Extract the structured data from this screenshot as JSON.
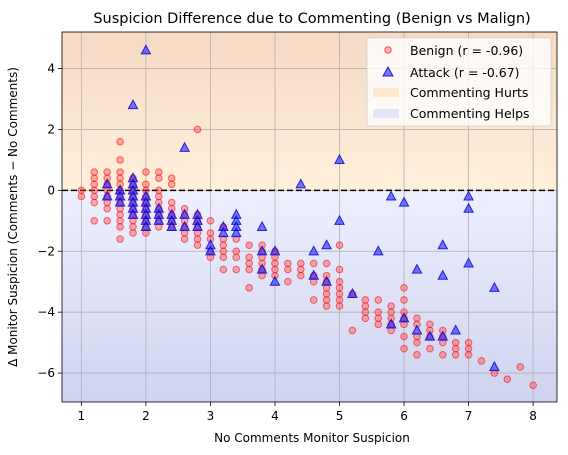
{
  "chart_data": {
    "type": "scatter",
    "title": "Suspicion Difference due to Commenting (Benign vs Malign)",
    "xlabel": "No Comments Monitor Suspicion",
    "ylabel": "Δ Monitor Suspicion (Comments − No Comments)",
    "xlim": [
      0.7,
      8.37
    ],
    "ylim": [
      -6.95,
      5.2
    ],
    "xticks": [
      "1",
      "2",
      "3",
      "4",
      "5",
      "6",
      "7",
      "8"
    ],
    "yticks": [
      "−6",
      "−4",
      "−2",
      "0",
      "2",
      "4"
    ],
    "grid": true,
    "reference_line": {
      "y": 0,
      "style": "dashed",
      "color": "#000000"
    },
    "regions": [
      {
        "name": "Commenting Hurts",
        "y_from": 0,
        "y_to": 5.2,
        "color": "#ffe0b8"
      },
      {
        "name": "Commenting Helps",
        "y_from": -6.95,
        "y_to": 0,
        "color": "#d8dcf8"
      }
    ],
    "legend_position": "top-right",
    "series": [
      {
        "name": "Benign (r = -0.96)",
        "marker": "circle",
        "color": "#ff4040",
        "points": [
          [
            1.0,
            0.0
          ],
          [
            1.0,
            -0.2
          ],
          [
            1.2,
            0.6
          ],
          [
            1.2,
            0.4
          ],
          [
            1.2,
            0.2
          ],
          [
            1.2,
            0.0
          ],
          [
            1.2,
            -0.2
          ],
          [
            1.2,
            -0.4
          ],
          [
            1.2,
            -1.0
          ],
          [
            1.4,
            0.6
          ],
          [
            1.4,
            0.4
          ],
          [
            1.4,
            0.2
          ],
          [
            1.4,
            0.0
          ],
          [
            1.4,
            -0.2
          ],
          [
            1.4,
            -0.4
          ],
          [
            1.4,
            -0.6
          ],
          [
            1.4,
            -1.0
          ],
          [
            1.6,
            1.6
          ],
          [
            1.6,
            1.0
          ],
          [
            1.6,
            0.6
          ],
          [
            1.6,
            0.4
          ],
          [
            1.6,
            0.2
          ],
          [
            1.6,
            0.0
          ],
          [
            1.6,
            -0.2
          ],
          [
            1.6,
            -0.4
          ],
          [
            1.6,
            -0.6
          ],
          [
            1.6,
            -0.8
          ],
          [
            1.6,
            -1.0
          ],
          [
            1.6,
            -1.2
          ],
          [
            1.6,
            -1.6
          ],
          [
            1.8,
            0.4
          ],
          [
            1.8,
            0.2
          ],
          [
            1.8,
            0.0
          ],
          [
            1.8,
            -0.2
          ],
          [
            1.8,
            -0.4
          ],
          [
            1.8,
            -0.6
          ],
          [
            1.8,
            -0.8
          ],
          [
            1.8,
            -1.0
          ],
          [
            1.8,
            -1.2
          ],
          [
            1.8,
            -1.4
          ],
          [
            2.0,
            0.6
          ],
          [
            2.0,
            0.2
          ],
          [
            2.0,
            0.0
          ],
          [
            2.0,
            -0.2
          ],
          [
            2.0,
            -0.4
          ],
          [
            2.0,
            -0.6
          ],
          [
            2.0,
            -0.8
          ],
          [
            2.0,
            -1.0
          ],
          [
            2.0,
            -1.2
          ],
          [
            2.0,
            -1.4
          ],
          [
            2.2,
            0.6
          ],
          [
            2.2,
            0.4
          ],
          [
            2.2,
            0.0
          ],
          [
            2.2,
            -0.2
          ],
          [
            2.2,
            -0.4
          ],
          [
            2.2,
            -0.6
          ],
          [
            2.2,
            -0.8
          ],
          [
            2.2,
            -1.0
          ],
          [
            2.2,
            -1.2
          ],
          [
            2.4,
            0.4
          ],
          [
            2.4,
            0.2
          ],
          [
            2.4,
            -0.4
          ],
          [
            2.4,
            -0.6
          ],
          [
            2.4,
            -0.8
          ],
          [
            2.4,
            -1.0
          ],
          [
            2.4,
            -1.2
          ],
          [
            2.6,
            -0.6
          ],
          [
            2.6,
            -0.8
          ],
          [
            2.6,
            -1.0
          ],
          [
            2.6,
            -1.2
          ],
          [
            2.6,
            -1.4
          ],
          [
            2.6,
            -1.6
          ],
          [
            2.8,
            2.0
          ],
          [
            2.8,
            -0.8
          ],
          [
            2.8,
            -1.0
          ],
          [
            2.8,
            -1.2
          ],
          [
            2.8,
            -1.4
          ],
          [
            2.8,
            -1.6
          ],
          [
            2.8,
            -1.8
          ],
          [
            3.0,
            -1.0
          ],
          [
            3.0,
            -1.4
          ],
          [
            3.0,
            -1.6
          ],
          [
            3.0,
            -2.0
          ],
          [
            3.0,
            -2.2
          ],
          [
            3.2,
            -1.2
          ],
          [
            3.2,
            -1.6
          ],
          [
            3.2,
            -1.8
          ],
          [
            3.2,
            -2.0
          ],
          [
            3.2,
            -2.2
          ],
          [
            3.2,
            -2.6
          ],
          [
            3.4,
            -1.6
          ],
          [
            3.4,
            -2.0
          ],
          [
            3.4,
            -2.2
          ],
          [
            3.4,
            -2.6
          ],
          [
            3.6,
            -1.8
          ],
          [
            3.6,
            -2.2
          ],
          [
            3.6,
            -2.4
          ],
          [
            3.6,
            -2.6
          ],
          [
            3.6,
            -3.2
          ],
          [
            3.8,
            -1.8
          ],
          [
            3.8,
            -2.0
          ],
          [
            3.8,
            -2.2
          ],
          [
            3.8,
            -2.4
          ],
          [
            3.8,
            -2.6
          ],
          [
            3.8,
            -2.8
          ],
          [
            4.0,
            -2.0
          ],
          [
            4.0,
            -2.2
          ],
          [
            4.0,
            -2.4
          ],
          [
            4.0,
            -2.6
          ],
          [
            4.0,
            -2.8
          ],
          [
            4.2,
            -2.4
          ],
          [
            4.2,
            -2.6
          ],
          [
            4.2,
            -3.0
          ],
          [
            4.4,
            -2.4
          ],
          [
            4.4,
            -2.6
          ],
          [
            4.4,
            -2.8
          ],
          [
            4.6,
            -2.4
          ],
          [
            4.6,
            -2.8
          ],
          [
            4.6,
            -3.0
          ],
          [
            4.6,
            -3.6
          ],
          [
            4.8,
            -2.4
          ],
          [
            4.8,
            -2.8
          ],
          [
            4.8,
            -3.0
          ],
          [
            4.8,
            -3.2
          ],
          [
            4.8,
            -3.4
          ],
          [
            4.8,
            -3.6
          ],
          [
            4.8,
            -3.8
          ],
          [
            5.0,
            -1.8
          ],
          [
            5.0,
            -2.6
          ],
          [
            5.0,
            -3.0
          ],
          [
            5.0,
            -3.2
          ],
          [
            5.0,
            -3.4
          ],
          [
            5.0,
            -3.6
          ],
          [
            5.0,
            -3.8
          ],
          [
            5.2,
            -3.4
          ],
          [
            5.2,
            -4.6
          ],
          [
            5.4,
            -3.6
          ],
          [
            5.4,
            -3.8
          ],
          [
            5.4,
            -4.0
          ],
          [
            5.4,
            -4.2
          ],
          [
            5.6,
            -3.6
          ],
          [
            5.6,
            -4.0
          ],
          [
            5.6,
            -4.2
          ],
          [
            5.6,
            -4.4
          ],
          [
            5.8,
            -3.8
          ],
          [
            5.8,
            -4.0
          ],
          [
            5.8,
            -4.2
          ],
          [
            5.8,
            -4.4
          ],
          [
            5.8,
            -4.6
          ],
          [
            6.0,
            -3.2
          ],
          [
            6.0,
            -3.6
          ],
          [
            6.0,
            -4.0
          ],
          [
            6.0,
            -4.2
          ],
          [
            6.0,
            -4.4
          ],
          [
            6.0,
            -4.8
          ],
          [
            6.0,
            -5.2
          ],
          [
            6.2,
            -4.2
          ],
          [
            6.2,
            -4.4
          ],
          [
            6.2,
            -4.8
          ],
          [
            6.2,
            -5.0
          ],
          [
            6.2,
            -5.4
          ],
          [
            6.4,
            -4.4
          ],
          [
            6.4,
            -4.6
          ],
          [
            6.4,
            -4.8
          ],
          [
            6.4,
            -5.2
          ],
          [
            6.6,
            -4.6
          ],
          [
            6.6,
            -4.8
          ],
          [
            6.6,
            -5.0
          ],
          [
            6.6,
            -5.4
          ],
          [
            6.8,
            -5.0
          ],
          [
            6.8,
            -5.2
          ],
          [
            6.8,
            -5.4
          ],
          [
            7.0,
            -5.0
          ],
          [
            7.0,
            -5.2
          ],
          [
            7.0,
            -5.4
          ],
          [
            7.2,
            -5.6
          ],
          [
            7.4,
            -6.0
          ],
          [
            7.6,
            -6.2
          ],
          [
            7.8,
            -5.8
          ],
          [
            8.0,
            -6.4
          ]
        ]
      },
      {
        "name": "Attack (r = -0.67)",
        "marker": "triangle",
        "color": "#2020ff",
        "points": [
          [
            1.4,
            0.2
          ],
          [
            1.4,
            -0.2
          ],
          [
            1.6,
            0.0
          ],
          [
            1.6,
            -0.2
          ],
          [
            1.6,
            -0.4
          ],
          [
            1.8,
            2.8
          ],
          [
            1.8,
            0.4
          ],
          [
            1.8,
            0.2
          ],
          [
            1.8,
            0.0
          ],
          [
            1.8,
            -0.2
          ],
          [
            1.8,
            -0.4
          ],
          [
            1.8,
            -0.6
          ],
          [
            1.8,
            -0.8
          ],
          [
            2.0,
            4.6
          ],
          [
            2.0,
            -0.2
          ],
          [
            2.0,
            -0.4
          ],
          [
            2.0,
            -0.6
          ],
          [
            2.0,
            -0.8
          ],
          [
            2.0,
            -1.0
          ],
          [
            2.0,
            -1.2
          ],
          [
            2.2,
            -0.6
          ],
          [
            2.2,
            -0.8
          ],
          [
            2.2,
            -1.0
          ],
          [
            2.4,
            -0.8
          ],
          [
            2.4,
            -1.0
          ],
          [
            2.4,
            -1.2
          ],
          [
            2.6,
            1.4
          ],
          [
            2.6,
            -0.8
          ],
          [
            2.6,
            -1.2
          ],
          [
            2.8,
            -0.8
          ],
          [
            2.8,
            -1.0
          ],
          [
            2.8,
            -1.2
          ],
          [
            3.0,
            -1.8
          ],
          [
            3.0,
            -2.0
          ],
          [
            3.2,
            -1.2
          ],
          [
            3.2,
            -1.4
          ],
          [
            3.4,
            -0.8
          ],
          [
            3.4,
            -1.0
          ],
          [
            3.4,
            -1.2
          ],
          [
            3.4,
            -1.4
          ],
          [
            3.8,
            -1.2
          ],
          [
            3.8,
            -2.0
          ],
          [
            3.8,
            -2.6
          ],
          [
            4.0,
            -2.0
          ],
          [
            4.0,
            -3.0
          ],
          [
            4.4,
            0.2
          ],
          [
            4.6,
            -2.0
          ],
          [
            4.6,
            -2.8
          ],
          [
            4.8,
            -1.8
          ],
          [
            4.8,
            -3.0
          ],
          [
            5.0,
            1.0
          ],
          [
            5.0,
            -1.0
          ],
          [
            5.2,
            -3.4
          ],
          [
            5.6,
            -2.0
          ],
          [
            5.8,
            -0.2
          ],
          [
            5.8,
            -4.4
          ],
          [
            6.0,
            -0.4
          ],
          [
            6.0,
            -4.2
          ],
          [
            6.2,
            -2.6
          ],
          [
            6.2,
            -4.6
          ],
          [
            6.4,
            -4.8
          ],
          [
            6.6,
            -1.8
          ],
          [
            6.6,
            -2.8
          ],
          [
            6.6,
            -4.8
          ],
          [
            6.8,
            -4.6
          ],
          [
            7.0,
            -0.2
          ],
          [
            7.0,
            -0.6
          ],
          [
            7.0,
            -2.4
          ],
          [
            7.4,
            -3.2
          ],
          [
            7.4,
            -5.8
          ]
        ]
      }
    ]
  }
}
